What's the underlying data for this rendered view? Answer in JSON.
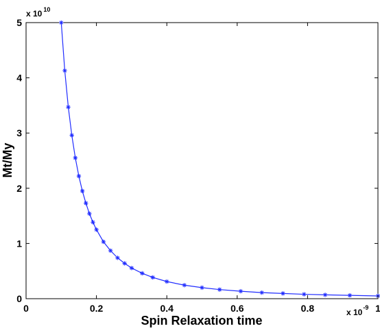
{
  "chart_data": {
    "type": "line",
    "title": "",
    "xlabel": "Spin Relaxation time",
    "ylabel": "Mt/My",
    "xlim": [
      0,
      1
    ],
    "ylim": [
      0,
      5
    ],
    "x_ticks": [
      "0",
      "0.2",
      "0.4",
      "0.6",
      "0.8",
      "1"
    ],
    "y_ticks": [
      "0",
      "1",
      "2",
      "3",
      "4",
      "5"
    ],
    "x_multiplier": {
      "base": "x 10",
      "exponent": "-9"
    },
    "y_multiplier": {
      "base": "x 10",
      "exponent": "10"
    },
    "grid": false,
    "legend": "none",
    "marker": "asterisk",
    "series": [
      {
        "color": "#1f2bff",
        "x": [
          0.1,
          0.11,
          0.12,
          0.13,
          0.14,
          0.15,
          0.16,
          0.17,
          0.18,
          0.19,
          0.2,
          0.22,
          0.24,
          0.26,
          0.28,
          0.3,
          0.33,
          0.36,
          0.4,
          0.45,
          0.5,
          0.55,
          0.61,
          0.67,
          0.73,
          0.79,
          0.85,
          0.92,
          1.0
        ],
        "y": [
          5.0,
          4.13,
          3.47,
          2.96,
          2.55,
          2.22,
          1.95,
          1.73,
          1.54,
          1.385,
          1.25,
          1.03,
          0.87,
          0.74,
          0.64,
          0.555,
          0.46,
          0.385,
          0.31,
          0.245,
          0.2,
          0.165,
          0.135,
          0.11,
          0.095,
          0.08,
          0.07,
          0.06,
          0.05
        ]
      }
    ]
  }
}
